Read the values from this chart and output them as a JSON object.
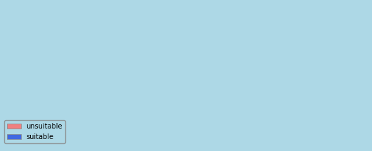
{
  "title": "",
  "background_color": "#add8e6",
  "unsuitable_color": "#f08080",
  "suitable_color": "#4169e1",
  "border_color": "#333333",
  "border_linewidth": 0.3,
  "legend_unsuitable": "unsuitable",
  "legend_suitable": "suitable",
  "legend_fontsize": 7,
  "legend_patch_size": 10,
  "figsize": [
    5.3,
    2.15
  ],
  "dpi": 100,
  "xlim": [
    94,
    141
  ],
  "ylim": [
    -11,
    7
  ]
}
